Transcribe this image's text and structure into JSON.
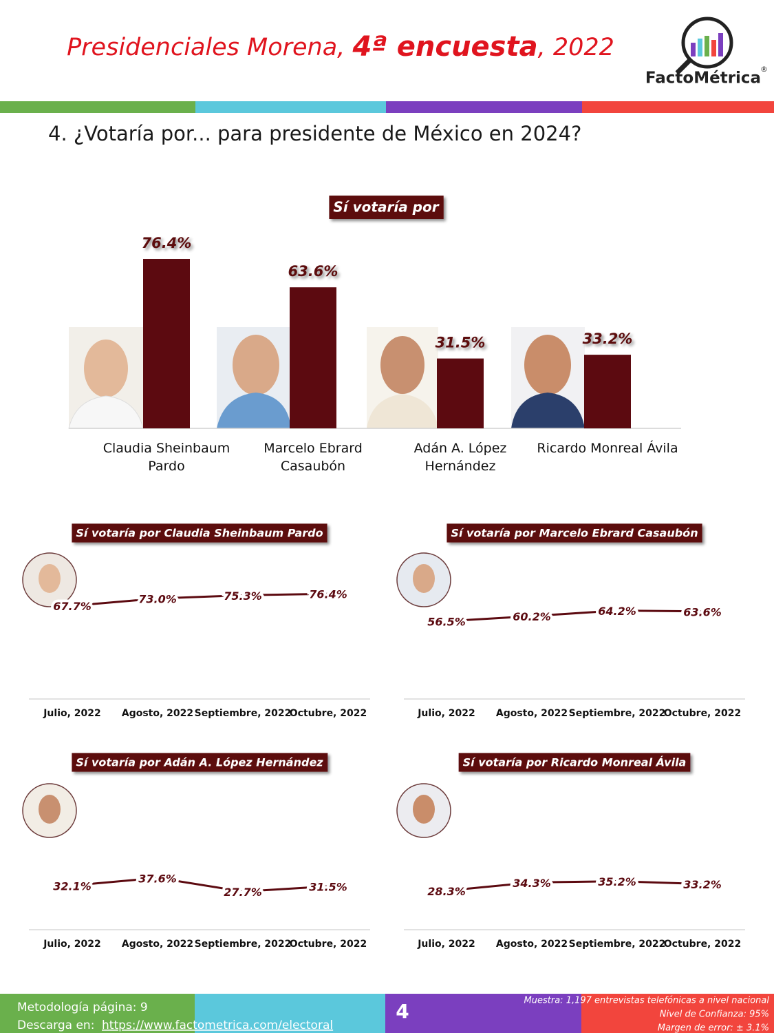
{
  "header": {
    "title": [
      "Presidenciales Morena, ",
      "4ª encuesta",
      ", 2022"
    ],
    "brand": "FactoMétrica",
    "registered": "®"
  },
  "question": "4. ¿Votaría por... para presidente de México en 2024?",
  "chart_data": [
    {
      "type": "bar",
      "title": "Sí votaría por",
      "categories": [
        "Claudia Sheinbaum Pardo",
        "Marcelo Ebrard Casaubón",
        "Adán A. López Hernández",
        "Ricardo Monreal Ávila"
      ],
      "values": [
        76.4,
        63.6,
        31.5,
        33.2
      ],
      "value_labels": [
        "76.4%",
        "63.6%",
        "31.5%",
        "33.2%"
      ],
      "color": "#5c0a10",
      "ylim": [
        0,
        100
      ]
    },
    {
      "type": "line",
      "title": "Sí votaría por Claudia Sheinbaum Pardo",
      "categories": [
        "Julio, 2022",
        "Agosto, 2022",
        "Septiembre, 2022",
        "Octubre, 2022"
      ],
      "values": [
        67.7,
        73.0,
        75.3,
        76.4
      ],
      "value_labels": [
        "67.7%",
        "73.0%",
        "75.3%",
        "76.4%"
      ],
      "color": "#5c0a10",
      "ylim": [
        0,
        100
      ]
    },
    {
      "type": "line",
      "title": "Sí votaría por Marcelo Ebrard Casaubón",
      "categories": [
        "Julio, 2022",
        "Agosto, 2022",
        "Septiembre, 2022",
        "Octubre, 2022"
      ],
      "values": [
        56.5,
        60.2,
        64.2,
        63.6
      ],
      "value_labels": [
        "56.5%",
        "60.2%",
        "64.2%",
        "63.6%"
      ],
      "color": "#5c0a10",
      "ylim": [
        0,
        100
      ]
    },
    {
      "type": "line",
      "title": "Sí votaría por Adán A. López Hernández",
      "categories": [
        "Julio, 2022",
        "Agosto, 2022",
        "Septiembre, 2022",
        "Octubre, 2022"
      ],
      "values": [
        32.1,
        37.6,
        27.7,
        31.5
      ],
      "value_labels": [
        "32.1%",
        "37.6%",
        "27.7%",
        "31.5%"
      ],
      "color": "#5c0a10",
      "ylim": [
        0,
        100
      ]
    },
    {
      "type": "line",
      "title": "Sí votaría por Ricardo Monreal Ávila",
      "categories": [
        "Julio, 2022",
        "Agosto, 2022",
        "Septiembre, 2022",
        "Octubre, 2022"
      ],
      "values": [
        28.3,
        34.3,
        35.2,
        33.2
      ],
      "value_labels": [
        "28.3%",
        "34.3%",
        "35.2%",
        "33.2%"
      ],
      "color": "#5c0a10",
      "ylim": [
        0,
        100
      ]
    }
  ],
  "footer": {
    "methodology": "Metodología página: 9",
    "download_label": "Descarga en:",
    "url": "https://www.factometrica.com/electoral",
    "page": "4",
    "notes": [
      "Muestra:  1,197 entrevistas telefónicas a nivel nacional",
      "Nivel de Confianza: 95%",
      "Margen de error: ± 3.1%"
    ]
  }
}
